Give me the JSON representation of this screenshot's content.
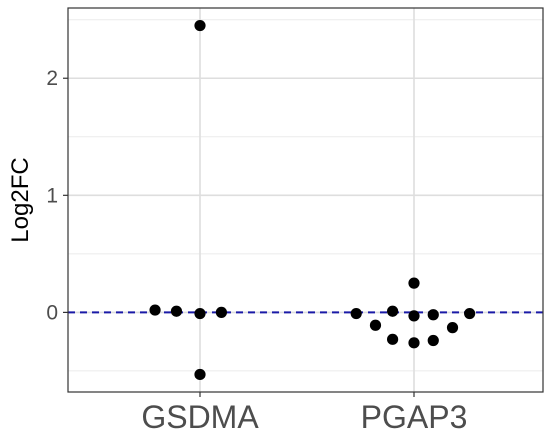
{
  "chart_data": {
    "type": "scatter",
    "title": "",
    "xlabel": "",
    "ylabel": "Log2FC",
    "categories": [
      "GSDMA",
      "PGAP3"
    ],
    "ylim": [
      -0.68,
      2.6
    ],
    "y_ticks": [
      0,
      1,
      2
    ],
    "y_tick_labels": [
      "0",
      "1",
      "2"
    ],
    "grid": true,
    "reference_line": {
      "y": 0,
      "style": "dashed",
      "color": "#1a1aa6"
    },
    "point_color": "#000000",
    "series": [
      {
        "category": "GSDMA",
        "points": [
          {
            "offset": -0.21,
            "y": 0.02
          },
          {
            "offset": -0.11,
            "y": 0.01
          },
          {
            "offset": 0.0,
            "y": 2.45
          },
          {
            "offset": 0.0,
            "y": -0.01
          },
          {
            "offset": 0.0,
            "y": -0.53
          },
          {
            "offset": 0.1,
            "y": 0.0
          }
        ]
      },
      {
        "category": "PGAP3",
        "points": [
          {
            "offset": -0.27,
            "y": -0.01
          },
          {
            "offset": -0.18,
            "y": -0.11
          },
          {
            "offset": -0.1,
            "y": 0.01
          },
          {
            "offset": -0.1,
            "y": -0.23
          },
          {
            "offset": 0.0,
            "y": 0.25
          },
          {
            "offset": 0.0,
            "y": -0.03
          },
          {
            "offset": 0.0,
            "y": -0.26
          },
          {
            "offset": 0.09,
            "y": -0.02
          },
          {
            "offset": 0.09,
            "y": -0.24
          },
          {
            "offset": 0.18,
            "y": -0.13
          },
          {
            "offset": 0.26,
            "y": -0.01
          }
        ]
      }
    ]
  }
}
